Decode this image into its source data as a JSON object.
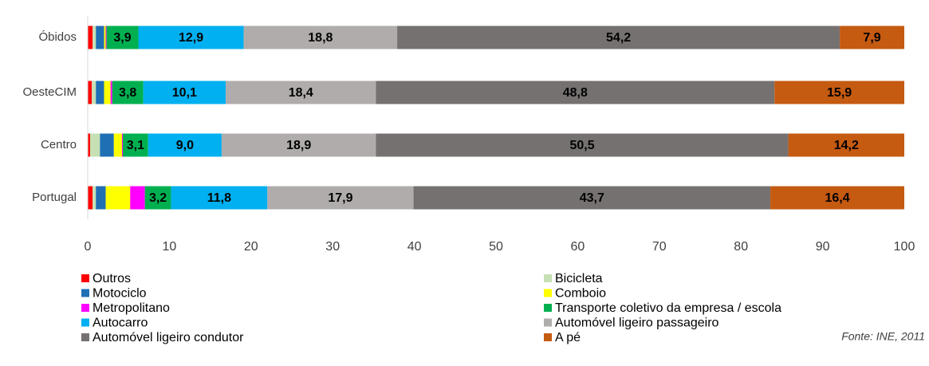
{
  "chart_data": {
    "type": "stacked_bar_horizontal",
    "categories": [
      "Óbidos",
      "OesteCIM",
      "Centro",
      "Portugal"
    ],
    "series": [
      {
        "name": "Outros",
        "color": "#ff0000",
        "values": [
          0.6,
          0.5,
          0.3,
          0.6
        ]
      },
      {
        "name": "Bicicleta",
        "color": "#c6e0b4",
        "values": [
          0.4,
          0.5,
          1.2,
          0.4
        ]
      },
      {
        "name": "Motociclo",
        "color": "#1f6fb5",
        "values": [
          1.0,
          1.0,
          1.7,
          1.2
        ]
      },
      {
        "name": "Comboio",
        "color": "#ffff00",
        "values": [
          0.2,
          0.8,
          1.0,
          3.0
        ]
      },
      {
        "name": "Metropolitano",
        "color": "#ff00ff",
        "values": [
          0.1,
          0.2,
          0.1,
          1.8
        ]
      },
      {
        "name": "Transporte coletivo da empresa / escola",
        "color": "#00b050",
        "values": [
          3.9,
          3.8,
          3.1,
          3.2
        ],
        "value_labels": [
          "3,9",
          "3,8",
          "3,1",
          "3,2"
        ]
      },
      {
        "name": "Autocarro",
        "color": "#00b0f0",
        "values": [
          12.9,
          10.1,
          9.0,
          11.8
        ],
        "value_labels": [
          "12,9",
          "10,1",
          "9,0",
          "11,8"
        ]
      },
      {
        "name": "Automóvel ligeiro passageiro",
        "color": "#b0acab",
        "values": [
          18.8,
          18.4,
          18.9,
          17.9
        ],
        "value_labels": [
          "18,8",
          "18,4",
          "18,9",
          "17,9"
        ]
      },
      {
        "name": "Automóvel ligeiro condutor",
        "color": "#767171",
        "values": [
          54.2,
          48.8,
          50.5,
          43.7
        ],
        "value_labels": [
          "54,2",
          "48,8",
          "50,5",
          "43,7"
        ]
      },
      {
        "name": "A pé",
        "color": "#c55a11",
        "values": [
          7.9,
          15.9,
          14.2,
          16.4
        ],
        "value_labels": [
          "7,9",
          "15,9",
          "14,2",
          "16,4"
        ]
      }
    ],
    "xlim": [
      0,
      100
    ],
    "xticks": [
      0,
      10,
      20,
      30,
      40,
      50,
      60,
      70,
      80,
      90,
      100
    ],
    "source": "Fonte: INE, 2011"
  }
}
